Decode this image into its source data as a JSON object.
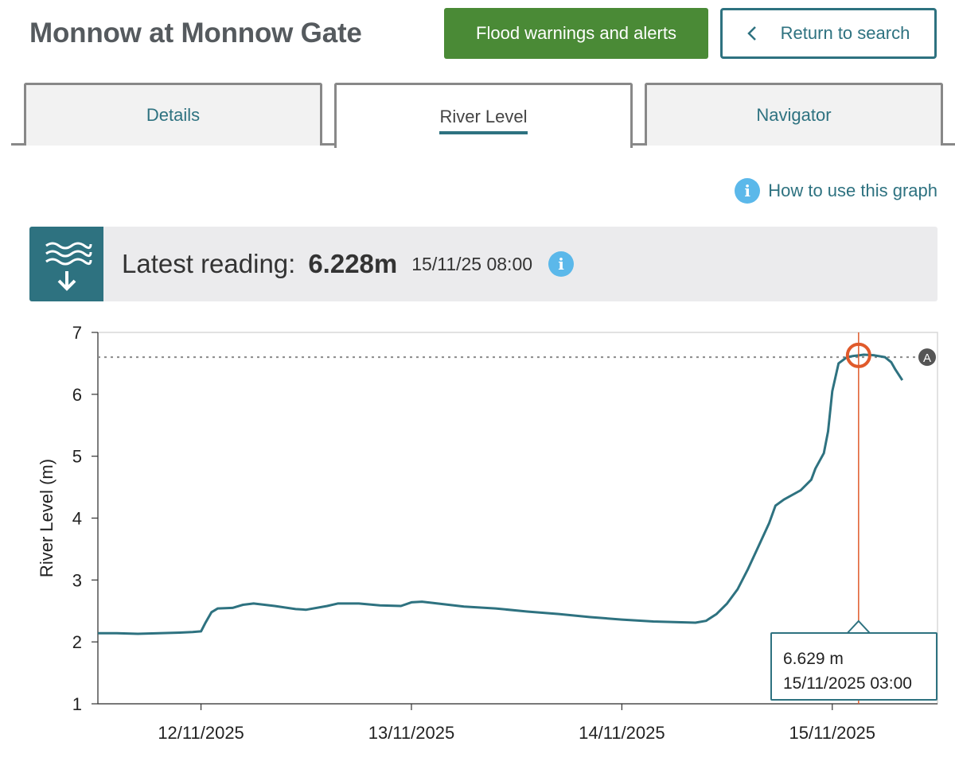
{
  "header": {
    "title": "Monnow at Monnow Gate",
    "flood_button": "Flood warnings and alerts",
    "return_button": "Return to search"
  },
  "tabs": [
    {
      "label": "Details",
      "active": false
    },
    {
      "label": "River Level",
      "active": true
    },
    {
      "label": "Navigator",
      "active": false
    }
  ],
  "help": {
    "label": "How to use this graph",
    "icon": "info-icon"
  },
  "latest": {
    "label": "Latest reading:",
    "value": "6.228m",
    "timestamp": "15/11/25 08:00",
    "icon": "river-level-down-icon"
  },
  "colors": {
    "accent": "#2e7280",
    "flood_green": "#4a8a36",
    "marker": "#e05a2b",
    "info_blue": "#5bb8ea"
  },
  "tooltip": {
    "value": "6.629 m",
    "time": "15/11/2025 03:00"
  },
  "chart_data": {
    "type": "line",
    "ylabel": "River Level (m)",
    "ylim": [
      1,
      7
    ],
    "yticks": [
      1,
      2,
      3,
      4,
      5,
      6,
      7
    ],
    "xticks": [
      "12/11/2025",
      "13/11/2025",
      "14/11/2025",
      "15/11/2025"
    ],
    "xlim_days": [
      11.51,
      15.5
    ],
    "threshold": {
      "value": 6.6,
      "label": "A"
    },
    "selected": {
      "day": 15.125,
      "value": 6.629
    },
    "series": [
      {
        "points": [
          [
            11.51,
            2.14
          ],
          [
            11.6,
            2.14
          ],
          [
            11.7,
            2.13
          ],
          [
            11.8,
            2.14
          ],
          [
            11.9,
            2.15
          ],
          [
            11.96,
            2.16
          ],
          [
            12.0,
            2.17
          ],
          [
            12.02,
            2.3
          ],
          [
            12.05,
            2.48
          ],
          [
            12.08,
            2.54
          ],
          [
            12.15,
            2.55
          ],
          [
            12.2,
            2.6
          ],
          [
            12.25,
            2.62
          ],
          [
            12.35,
            2.58
          ],
          [
            12.45,
            2.53
          ],
          [
            12.5,
            2.52
          ],
          [
            12.6,
            2.58
          ],
          [
            12.65,
            2.62
          ],
          [
            12.75,
            2.62
          ],
          [
            12.85,
            2.59
          ],
          [
            12.95,
            2.58
          ],
          [
            13.0,
            2.64
          ],
          [
            13.05,
            2.65
          ],
          [
            13.1,
            2.63
          ],
          [
            13.25,
            2.57
          ],
          [
            13.4,
            2.54
          ],
          [
            13.55,
            2.49
          ],
          [
            13.7,
            2.45
          ],
          [
            13.85,
            2.4
          ],
          [
            14.0,
            2.36
          ],
          [
            14.15,
            2.33
          ],
          [
            14.25,
            2.32
          ],
          [
            14.35,
            2.31
          ],
          [
            14.4,
            2.34
          ],
          [
            14.45,
            2.45
          ],
          [
            14.5,
            2.62
          ],
          [
            14.55,
            2.85
          ],
          [
            14.6,
            3.18
          ],
          [
            14.65,
            3.55
          ],
          [
            14.7,
            3.92
          ],
          [
            14.73,
            4.2
          ],
          [
            14.77,
            4.3
          ],
          [
            14.85,
            4.45
          ],
          [
            14.9,
            4.62
          ],
          [
            14.92,
            4.8
          ],
          [
            14.96,
            5.05
          ],
          [
            14.98,
            5.4
          ],
          [
            15.0,
            6.05
          ],
          [
            15.03,
            6.5
          ],
          [
            15.07,
            6.6
          ],
          [
            15.1,
            6.62
          ],
          [
            15.125,
            6.629
          ],
          [
            15.15,
            6.64
          ],
          [
            15.2,
            6.63
          ],
          [
            15.25,
            6.6
          ],
          [
            15.28,
            6.52
          ],
          [
            15.3,
            6.4
          ],
          [
            15.333,
            6.228
          ]
        ]
      }
    ]
  }
}
